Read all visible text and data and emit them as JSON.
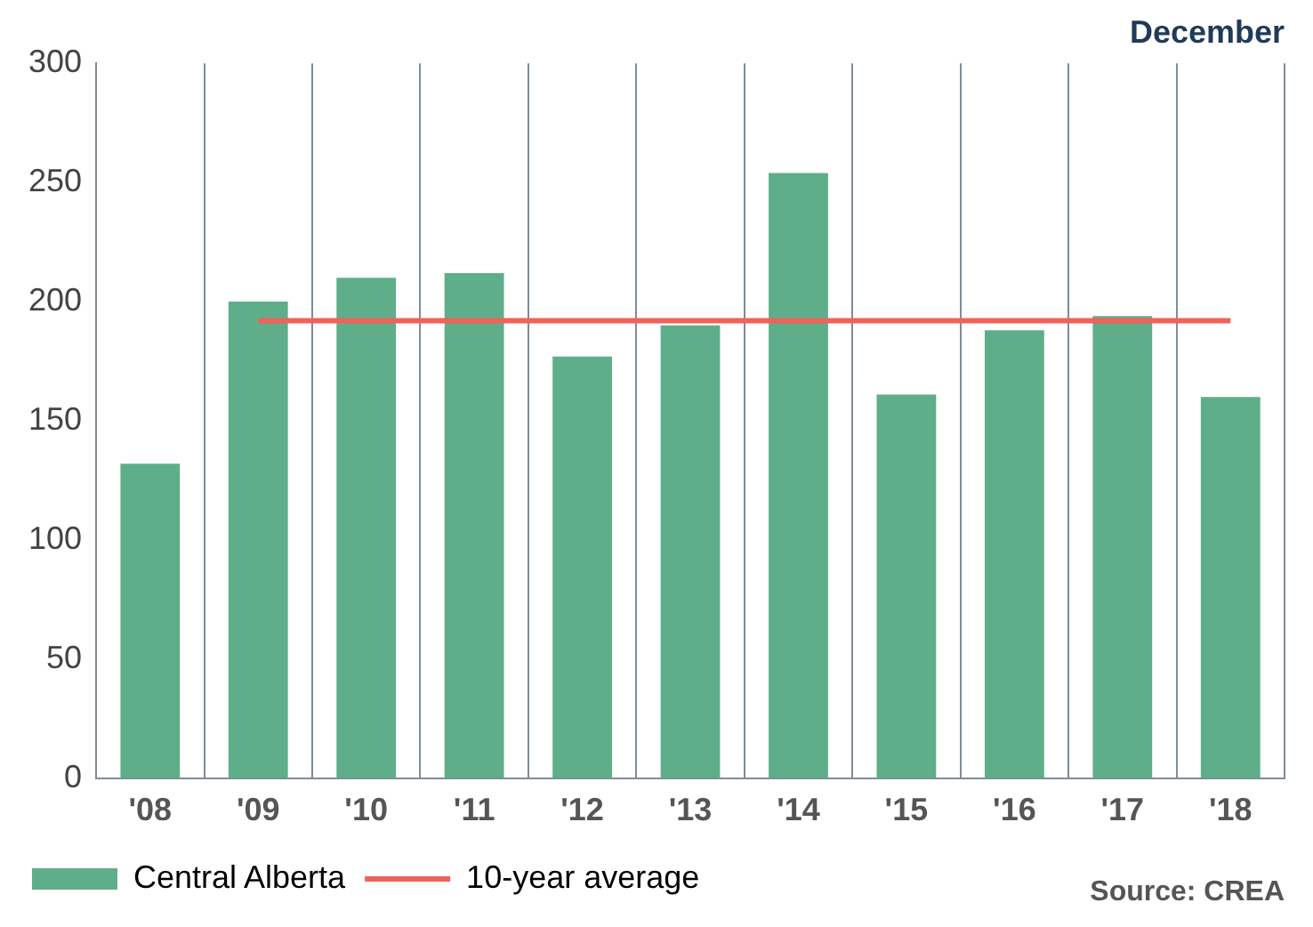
{
  "chart_data": {
    "type": "bar",
    "title": "December",
    "categories": [
      "'08",
      "'09",
      "'10",
      "'11",
      "'12",
      "'13",
      "'14",
      "'15",
      "'16",
      "'17",
      "'18"
    ],
    "series": [
      {
        "name": "Central Alberta",
        "color": "#5eae8a",
        "values": [
          132,
          200,
          210,
          212,
          177,
          190,
          254,
          161,
          188,
          194,
          160
        ]
      },
      {
        "name": "10-year average",
        "type": "line",
        "color": "#f0625a",
        "values": [
          null,
          192,
          192,
          192,
          192,
          192,
          192,
          192,
          192,
          192,
          192
        ]
      }
    ],
    "ylim": [
      0,
      300
    ],
    "yticks": [
      0,
      50,
      100,
      150,
      200,
      250,
      300
    ],
    "grid": "x",
    "legend": "bottom left",
    "marker": "none",
    "annotations": [
      "Source: CREA"
    ]
  }
}
